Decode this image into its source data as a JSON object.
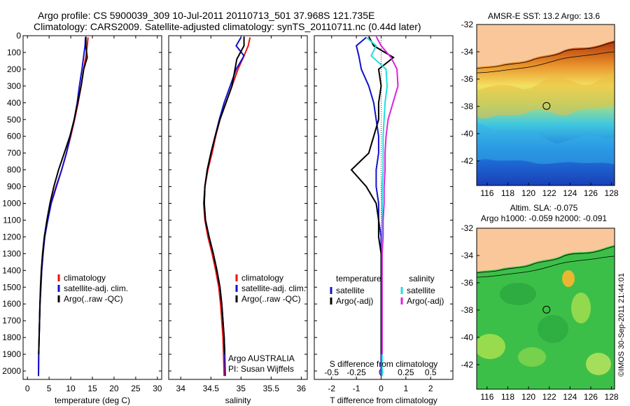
{
  "header": {
    "line1": "Argo profile: CS 5900039_309 10-Jul-2011 20110713_501 37.968S 121.735E",
    "line2": "Climatology: CARS2009. Satellite-adjusted climatology: synTS_20110711.nc (0.44d later)"
  },
  "side_label": "©IMOS 30-Sep-2011 21:44:01",
  "colors": {
    "climatology": "#ee1111",
    "satellite": "#1111cc",
    "argo": "#000000",
    "sat_salinity": "#22dddd",
    "argo_salinity_adj": "#dd22dd",
    "land": "#f9c79a"
  },
  "chart_data": [
    {
      "type": "line",
      "id": "temperature",
      "xlabel": "temperature (deg C)",
      "ylabel": "",
      "xlim": [
        -1,
        31
      ],
      "ylim": [
        2050,
        0
      ],
      "xticks": [
        0,
        5,
        10,
        15,
        20,
        25,
        30
      ],
      "yticks": [
        0,
        100,
        200,
        300,
        400,
        500,
        600,
        700,
        800,
        900,
        1000,
        1100,
        1200,
        1300,
        1400,
        1500,
        1600,
        1700,
        1800,
        1900,
        2000
      ],
      "legend": [
        "climatology",
        "satellite-adj. clim.",
        "Argo(..raw -QC)"
      ],
      "series": [
        {
          "name": "climatology",
          "color": "#ee1111",
          "x": [
            14.0,
            13.8,
            13.5,
            13.0,
            12.4,
            11.7,
            10.9,
            10.0,
            9.0,
            7.9,
            6.6,
            5.4,
            4.6,
            4.0,
            3.6,
            3.3,
            3.1,
            2.9,
            2.8,
            2.7,
            2.6,
            2.55
          ],
          "y": [
            10,
            60,
            120,
            200,
            300,
            400,
            500,
            600,
            700,
            800,
            900,
            1000,
            1100,
            1200,
            1300,
            1400,
            1500,
            1600,
            1700,
            1800,
            1900,
            2030
          ]
        },
        {
          "name": "satellite-adj. clim.",
          "color": "#1111cc",
          "x": [
            13.4,
            13.3,
            13.0,
            12.6,
            12.0,
            11.5,
            10.8,
            9.9,
            9.0,
            7.9,
            6.7,
            5.5,
            4.7,
            4.0,
            3.6,
            3.3,
            3.1,
            2.9,
            2.8,
            2.7,
            2.6,
            2.55
          ],
          "y": [
            10,
            60,
            120,
            200,
            300,
            400,
            500,
            600,
            700,
            800,
            900,
            1000,
            1100,
            1200,
            1300,
            1400,
            1500,
            1600,
            1700,
            1800,
            1900,
            2030
          ]
        },
        {
          "name": "Argo(..raw -QC)",
          "color": "#000000",
          "x": [
            13.5,
            13.5,
            13.8,
            13.0,
            12.4,
            11.6,
            10.8,
            9.8,
            8.5,
            7.2,
            6.1,
            5.2,
            4.5,
            3.9,
            3.5,
            3.2,
            3.0,
            2.9,
            2.8,
            2.7,
            2.6
          ],
          "y": [
            5,
            60,
            130,
            200,
            300,
            400,
            500,
            600,
            700,
            800,
            900,
            1000,
            1100,
            1200,
            1300,
            1400,
            1500,
            1600,
            1700,
            1800,
            1900
          ]
        }
      ]
    },
    {
      "type": "line",
      "id": "salinity",
      "xlabel": "salinity",
      "xlim": [
        33.8,
        36.1
      ],
      "ylim": [
        2050,
        0
      ],
      "xticks": [
        34,
        34.5,
        35,
        35.5,
        36
      ],
      "legend": [
        "climatology",
        "satellite-adj. clim.",
        "Argo(..raw -QC)"
      ],
      "series": [
        {
          "name": "climatology",
          "color": "#ee1111",
          "x": [
            35.15,
            35.12,
            35.05,
            34.95,
            34.85,
            34.75,
            34.65,
            34.58,
            34.52,
            34.45,
            34.4,
            34.38,
            34.4,
            34.45,
            34.52,
            34.58,
            34.63,
            34.66,
            34.68,
            34.7,
            34.71,
            34.72
          ],
          "y": [
            10,
            60,
            120,
            200,
            300,
            400,
            500,
            600,
            700,
            800,
            900,
            1000,
            1100,
            1200,
            1300,
            1400,
            1500,
            1600,
            1700,
            1800,
            1900,
            2030
          ]
        },
        {
          "name": "satellite-adj. clim.",
          "color": "#1111cc",
          "x": [
            35.0,
            34.92,
            35.05,
            34.92,
            34.82,
            34.72,
            34.64,
            34.57,
            34.5,
            34.44,
            34.4,
            34.39,
            34.41,
            34.47,
            34.54,
            34.6,
            34.65,
            34.68,
            34.7,
            34.72,
            34.73,
            34.74
          ],
          "y": [
            10,
            60,
            120,
            200,
            300,
            400,
            500,
            600,
            700,
            800,
            900,
            1000,
            1100,
            1200,
            1300,
            1400,
            1500,
            1600,
            1700,
            1800,
            1900,
            2030
          ]
        },
        {
          "name": "Argo(..raw -QC)",
          "color": "#000000",
          "x": [
            35.05,
            35.05,
            34.93,
            34.9,
            34.85,
            34.75,
            34.65,
            34.57,
            34.5,
            34.44,
            34.4,
            34.39,
            34.41,
            34.47,
            34.54,
            34.6,
            34.65,
            34.68,
            34.7,
            34.72,
            34.73
          ],
          "y": [
            5,
            60,
            140,
            200,
            300,
            400,
            500,
            600,
            700,
            800,
            900,
            1000,
            1100,
            1200,
            1300,
            1400,
            1500,
            1600,
            1700,
            1800,
            1900
          ]
        }
      ],
      "annotation": {
        "line1": "Argo AUSTRALIA",
        "line2": "PI: Susan Wijffels"
      }
    },
    {
      "type": "line",
      "id": "difference",
      "xlabel": "T difference from climatology",
      "xlabel_top": "S difference from climatology",
      "xlim": [
        -2.7,
        2.9
      ],
      "ylim": [
        2050,
        0
      ],
      "xticks_bottom": [
        -2,
        -1,
        0,
        1,
        2
      ],
      "xticks_top": [
        -0.5,
        -0.25,
        0,
        0.25,
        0.5
      ],
      "legend_left": {
        "title": "temperature",
        "items": [
          "satellite",
          "Argo(-adj)"
        ]
      },
      "legend_right": {
        "title": "salinity",
        "items": [
          "satellite",
          "Argo(-adj)"
        ]
      },
      "series": [
        {
          "name": "satellite",
          "group": "temperature",
          "color": "#1111cc",
          "x": [
            -0.6,
            -1.0,
            -0.9,
            -0.8,
            -0.5,
            -0.3,
            -0.2,
            -0.1,
            -0.1,
            -0.2,
            -0.2,
            -0.1,
            -0.1,
            0,
            0,
            0,
            0,
            0,
            0,
            0,
            0,
            0
          ],
          "y": [
            10,
            60,
            120,
            200,
            300,
            400,
            500,
            600,
            700,
            800,
            900,
            1000,
            1100,
            1200,
            1300,
            1400,
            1500,
            1600,
            1700,
            1800,
            1900,
            2030
          ]
        },
        {
          "name": "Argo(-adj)",
          "group": "temperature",
          "color": "#000000",
          "x": [
            -0.5,
            -0.3,
            0.5,
            -0.1,
            0.0,
            -0.1,
            -0.1,
            -0.3,
            -0.5,
            -1.2,
            -0.6,
            -0.2,
            -0.1,
            -0.1,
            0,
            0,
            0,
            0,
            0,
            0,
            0
          ],
          "y": [
            5,
            60,
            130,
            200,
            300,
            400,
            500,
            600,
            700,
            800,
            900,
            1000,
            1100,
            1200,
            1300,
            1400,
            1500,
            1600,
            1700,
            1800,
            1900
          ]
        },
        {
          "name": "satellite",
          "group": "salinity",
          "color": "#22dddd",
          "x": [
            -0.15,
            -0.05,
            -0.1,
            0.05,
            0.06,
            0.04,
            0.03,
            0.02,
            0.02,
            0.02,
            0.01,
            0.01,
            0.01,
            0.01,
            0.01,
            0.01,
            0.01,
            0.01,
            0.01,
            0.01,
            0.01,
            0.01
          ],
          "y": [
            10,
            60,
            120,
            200,
            300,
            400,
            500,
            600,
            700,
            800,
            900,
            1000,
            1100,
            1200,
            1300,
            1400,
            1500,
            1600,
            1700,
            1800,
            1900,
            2030
          ]
        },
        {
          "name": "Argo(-adj)",
          "group": "salinity",
          "color": "#dd22dd",
          "x": [
            -0.05,
            0,
            0.1,
            0.16,
            0.17,
            0.12,
            0.07,
            0.05,
            0.04,
            0.04,
            0.03,
            0.03,
            0.02,
            0.02,
            0.01,
            0.01,
            0.01,
            0.01,
            0.01,
            0.01,
            0.01
          ],
          "y": [
            5,
            60,
            130,
            200,
            300,
            400,
            500,
            600,
            700,
            800,
            900,
            1000,
            1100,
            1200,
            1300,
            1400,
            1500,
            1600,
            1700,
            1800,
            1900
          ]
        }
      ]
    },
    {
      "type": "heatmap",
      "id": "sst_map",
      "title": "AMSR-E SST: 13.2 Argo: 13.6",
      "xlim": [
        115,
        128.3
      ],
      "ylim": [
        -43.8,
        -32
      ],
      "xticks": [
        116,
        118,
        120,
        122,
        124,
        126,
        128
      ],
      "yticks": [
        -32,
        -34,
        -36,
        -38,
        -40,
        -42
      ],
      "marker": {
        "lon": 121.735,
        "lat": -37.968
      }
    },
    {
      "type": "heatmap",
      "id": "sla_map",
      "title_line1": "Altim. SLA: -0.075",
      "title_line2": "Argo h1000: -0.059 h2000: -0.091",
      "xlim": [
        115,
        128.3
      ],
      "ylim": [
        -43.8,
        -32
      ],
      "xticks": [
        116,
        118,
        120,
        122,
        124,
        126,
        128
      ],
      "yticks": [
        -32,
        -34,
        -36,
        -38,
        -40,
        -42
      ],
      "marker": {
        "lon": 121.735,
        "lat": -37.968
      }
    }
  ]
}
